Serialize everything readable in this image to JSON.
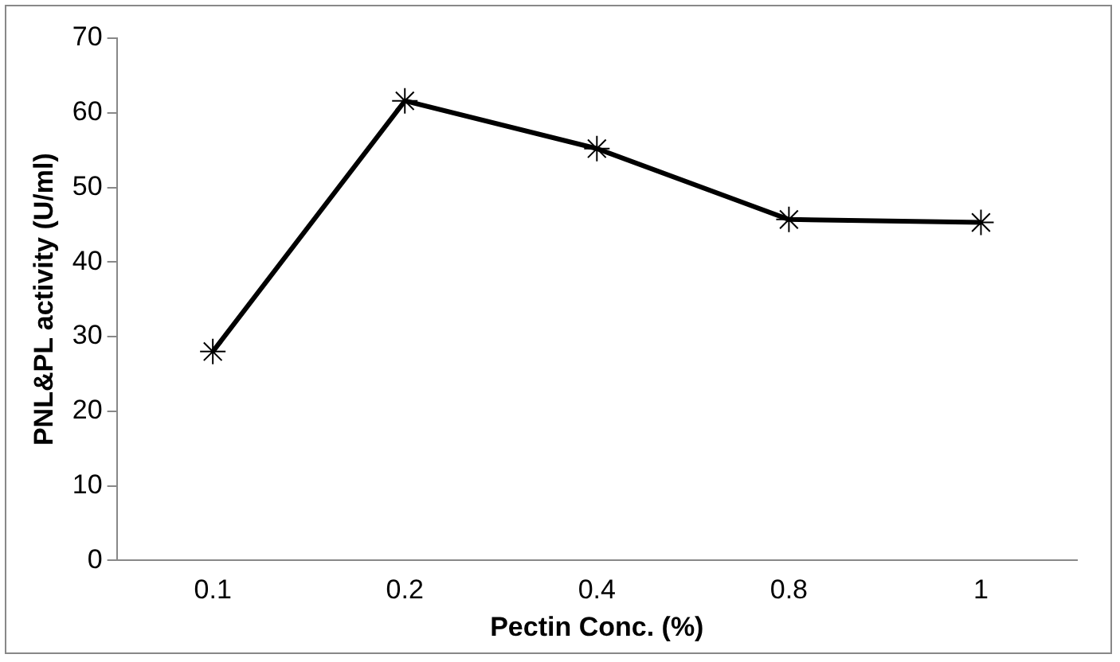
{
  "chart_data": {
    "type": "line",
    "xlabel": "Pectin Conc. (%)",
    "ylabel": "PNL&PL activity (U/ml)",
    "categories": [
      "0.1",
      "0.2",
      "0.4",
      "0.8",
      "1"
    ],
    "series": [
      {
        "color": "#000000",
        "values": [
          28,
          61.6,
          55.2,
          45.7,
          45.3
        ]
      }
    ],
    "ylim": [
      0,
      70
    ],
    "yticks": [
      0,
      10,
      20,
      30,
      40,
      50,
      60,
      70
    ],
    "grid": false,
    "legend": false,
    "marker": "cross",
    "line_style": "solid"
  }
}
